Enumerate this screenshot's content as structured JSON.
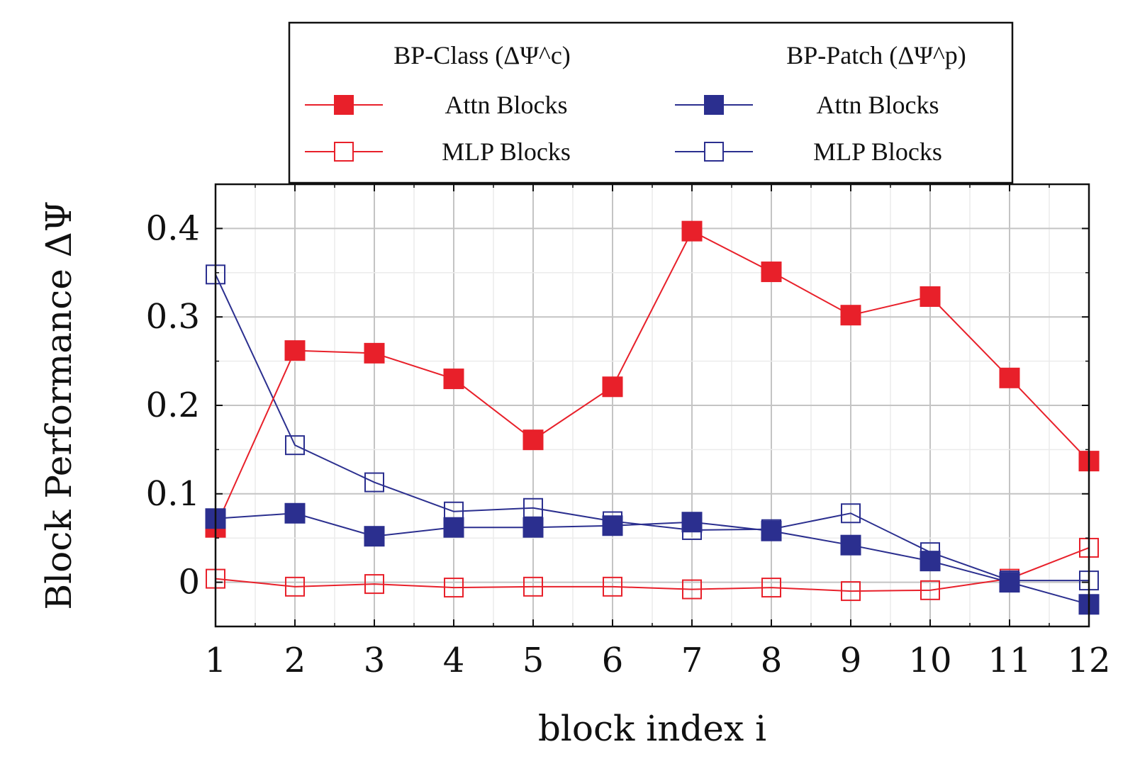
{
  "chart_data": {
    "type": "line",
    "xlabel": "block index i",
    "ylabel": "Block Performance ΔΨ",
    "x": [
      1,
      2,
      3,
      4,
      5,
      6,
      7,
      8,
      9,
      10,
      11,
      12
    ],
    "xlim": [
      1,
      12
    ],
    "ylim": [
      -0.05,
      0.45
    ],
    "y_ticks": [
      0,
      0.1,
      0.2,
      0.3,
      0.4
    ],
    "y_tick_labels": [
      "0",
      "0.1",
      "0.2",
      "0.3",
      "0.4"
    ],
    "x_tick_labels": [
      "1",
      "2",
      "3",
      "4",
      "5",
      "6",
      "7",
      "8",
      "9",
      "10",
      "11",
      "12"
    ],
    "grid": true,
    "legend": {
      "placement": "top, above plot",
      "group_titles": [
        "BP-Class (ΔΨ^c)",
        "BP-Patch (ΔΨ^p)"
      ]
    },
    "series": [
      {
        "name": "Attn Blocks",
        "group": "BP-Class (ΔΨ^c)",
        "color": "#e8202a",
        "marker": "filled-square",
        "values": [
          0.062,
          0.262,
          0.259,
          0.23,
          0.161,
          0.221,
          0.397,
          0.351,
          0.302,
          0.323,
          0.231,
          0.137
        ]
      },
      {
        "name": "MLP Blocks",
        "group": "BP-Class (ΔΨ^c)",
        "color": "#e8202a",
        "marker": "open-square",
        "values": [
          0.004,
          -0.005,
          -0.002,
          -0.006,
          -0.005,
          -0.005,
          -0.008,
          -0.006,
          -0.01,
          -0.009,
          0.004,
          0.039
        ]
      },
      {
        "name": "Attn Blocks",
        "group": "BP-Patch (ΔΨ^p)",
        "color": "#2b2f8f",
        "marker": "filled-square",
        "values": [
          0.072,
          0.078,
          0.052,
          0.062,
          0.062,
          0.064,
          0.068,
          0.058,
          0.042,
          0.024,
          0.0,
          -0.025
        ]
      },
      {
        "name": "MLP Blocks",
        "group": "BP-Patch (ΔΨ^p)",
        "color": "#2b2f8f",
        "marker": "open-square",
        "values": [
          0.348,
          0.155,
          0.113,
          0.08,
          0.084,
          0.069,
          0.059,
          0.06,
          0.078,
          0.034,
          0.002,
          0.002
        ]
      }
    ]
  }
}
